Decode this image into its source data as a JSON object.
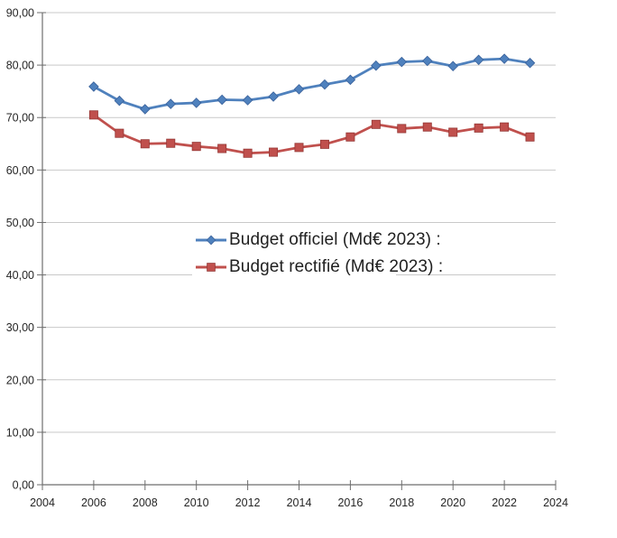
{
  "page": {
    "background": "#ffffff"
  },
  "chart_data": {
    "type": "line",
    "title": "",
    "xlabel": "",
    "ylabel": "",
    "x": [
      2006,
      2007,
      2008,
      2009,
      2010,
      2011,
      2012,
      2013,
      2014,
      2015,
      2016,
      2017,
      2018,
      2019,
      2020,
      2021,
      2022,
      2023
    ],
    "series": [
      {
        "name": "Budget officiel (Md€ 2023) :",
        "color": "#4F81BD",
        "marker": "diamond",
        "marker_stroke": "#38609A",
        "values": [
          75.9,
          73.2,
          71.6,
          72.6,
          72.8,
          73.4,
          73.3,
          74.0,
          75.4,
          76.3,
          77.2,
          79.9,
          80.6,
          80.8,
          79.8,
          81.0,
          81.2,
          80.4
        ]
      },
      {
        "name": "Budget rectifié (Md€ 2023) :",
        "color": "#C0504D",
        "marker": "square",
        "marker_stroke": "#953735",
        "values": [
          70.5,
          67.0,
          65.0,
          65.1,
          64.5,
          64.1,
          63.2,
          63.4,
          64.3,
          64.9,
          66.3,
          68.7,
          67.9,
          68.2,
          67.2,
          68.0,
          68.2,
          66.3
        ]
      }
    ],
    "xlim": [
      2004,
      2024
    ],
    "ylim": [
      0,
      90
    ],
    "x_ticks": [
      2004,
      2006,
      2008,
      2010,
      2012,
      2014,
      2016,
      2018,
      2020,
      2022,
      2024
    ],
    "x_tick_labels": [
      "2004",
      "2006",
      "2008",
      "2010",
      "2012",
      "2014",
      "2016",
      "2018",
      "2020",
      "2022",
      "2024"
    ],
    "y_ticks": [
      0,
      10,
      20,
      30,
      40,
      50,
      60,
      70,
      80,
      90
    ],
    "y_tick_labels": [
      "0,00",
      "10,00",
      "20,00",
      "30,00",
      "40,00",
      "50,00",
      "60,00",
      "70,00",
      "80,00",
      "90,00"
    ],
    "grid": "horizontal",
    "legend_position": "inside-center-left",
    "gridline_color": "#c9c9c9",
    "axis_color": "#6e6e6e",
    "tick_label_color": "#262626"
  }
}
